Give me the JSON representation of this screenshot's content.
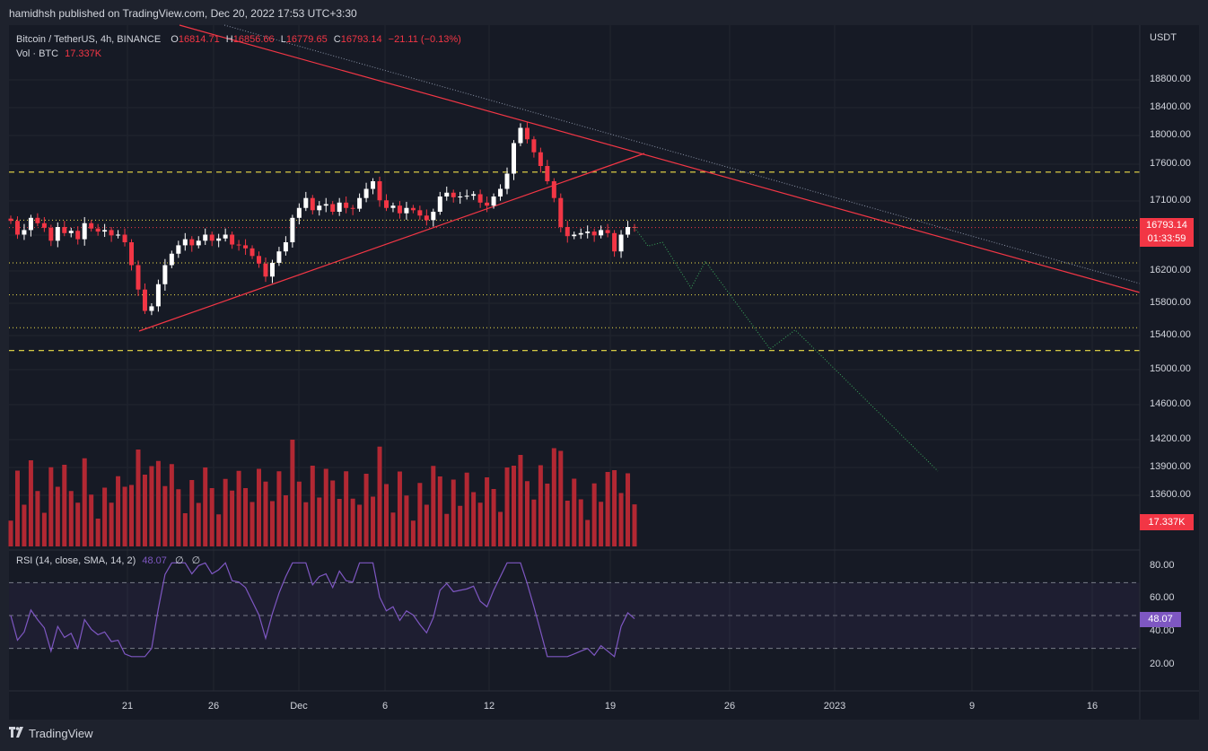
{
  "header": {
    "publisher_line": "hamidhsh published on TradingView.com, Dec 20, 2022 17:53 UTC+3:30"
  },
  "legend": {
    "symbol": "Bitcoin / TetherUS, 4h, BINANCE",
    "open_label": "O",
    "open": "16814.71",
    "high_label": "H",
    "high": "16856.66",
    "low_label": "L",
    "low": "16779.65",
    "close_label": "C",
    "close": "16793.14",
    "change": "−21.11 (−0.13%)",
    "vol_label": "Vol · BTC",
    "vol": "17.337K"
  },
  "price_axis": {
    "currency": "USDT",
    "ticks": [
      "18800.00",
      "18400.00",
      "18000.00",
      "17600.00",
      "17100.00",
      "16200.00",
      "15800.00",
      "15400.00",
      "15000.00",
      "14600.00",
      "14200.00",
      "13900.00",
      "13600.00"
    ]
  },
  "badges": {
    "last_price": "16793.14",
    "countdown": "01:33:59",
    "volume": "17.337K",
    "rsi": "48.07"
  },
  "rsi": {
    "label": "RSI (14, close, SMA, 14, 2)",
    "value": "48.07",
    "hidden_a": "∅",
    "hidden_b": "∅",
    "ticks": [
      "80.00",
      "60.00",
      "40.00",
      "20.00"
    ]
  },
  "time_axis": {
    "ticks": [
      "21",
      "26",
      "Dec",
      "6",
      "12",
      "19",
      "26",
      "2023",
      "9",
      "16"
    ]
  },
  "footer": {
    "brand": "TradingView"
  },
  "colors": {
    "up": "#ffffff",
    "down": "#f23645",
    "volume": "#b22833",
    "rsi": "#7e57c2",
    "trend": "#f23645",
    "levels": "#f0e04a",
    "projection": "#3aa65a"
  },
  "chart_data": {
    "type": "candlestick",
    "symbol": "BTCUSDT",
    "interval": "4h",
    "exchange": "BINANCE",
    "last_price": 16793.14,
    "price_levels": [
      17520,
      16890,
      16330,
      15910,
      15480,
      15180
    ],
    "rsi_last": 48.07,
    "rsi_bands": [
      70,
      50,
      30
    ],
    "close_series": [
      16880,
      16700,
      16760,
      16920,
      16850,
      16790,
      16620,
      16800,
      16720,
      16750,
      16640,
      16850,
      16780,
      16740,
      16760,
      16690,
      16700,
      16600,
      16300,
      15980,
      15700,
      15760,
      16050,
      16300,
      16450,
      16560,
      16640,
      16560,
      16620,
      16700,
      16620,
      16650,
      16700,
      16570,
      16560,
      16520,
      16420,
      16320,
      16150,
      16330,
      16480,
      16600,
      16920,
      17050,
      17180,
      17020,
      17080,
      17100,
      17000,
      17120,
      17050,
      17040,
      17180,
      17300,
      17400,
      17150,
      17050,
      17080,
      16980,
      17050,
      17020,
      16950,
      16890,
      17000,
      17200,
      17250,
      17190,
      17200,
      17210,
      17230,
      17120,
      17080,
      17200,
      17300,
      17500,
      17900,
      18100,
      17950,
      17780,
      17600,
      17400,
      17180,
      16800,
      16680,
      16700,
      16720,
      16740,
      16690,
      16760,
      16720,
      16480,
      16700,
      16800,
      16793
    ],
    "projection_path": [
      16793,
      16550,
      16600,
      16000,
      16350,
      15200,
      15450,
      13600
    ]
  }
}
